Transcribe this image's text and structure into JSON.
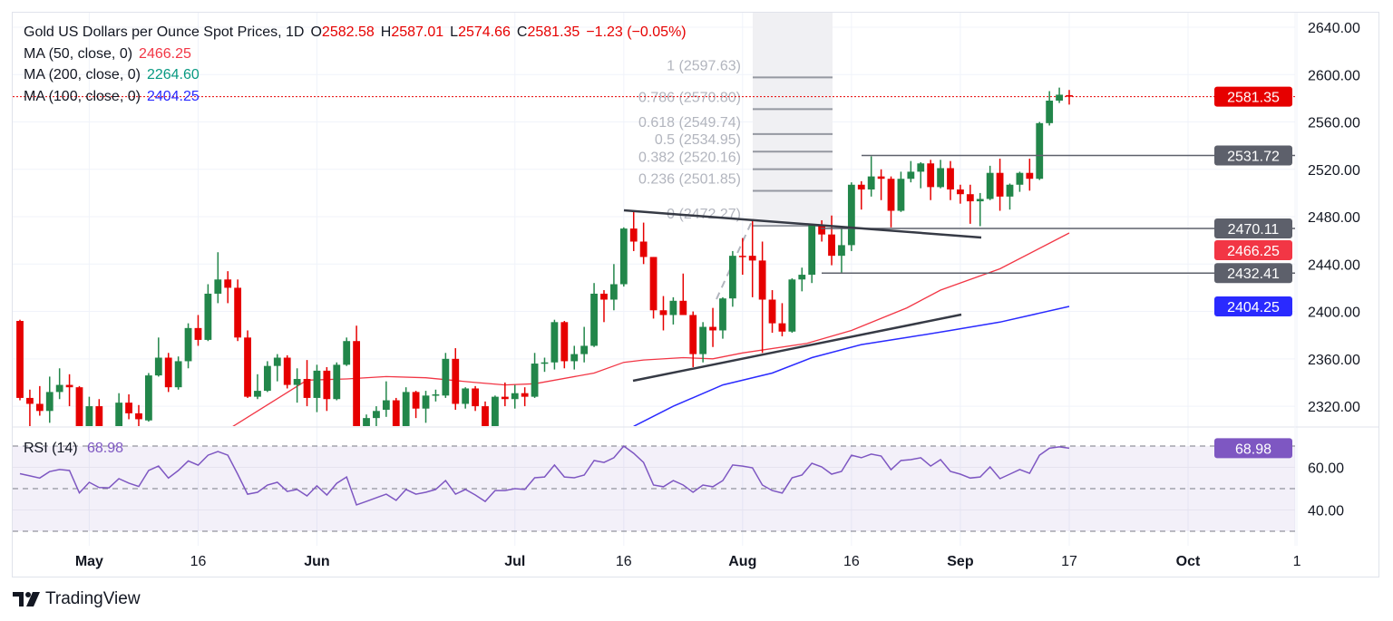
{
  "legend": {
    "title": "Gold US Dollars per Ounce Spot Prices, 1D",
    "o_label": "O",
    "o": "2582.58",
    "h_label": "H",
    "h": "2587.01",
    "l_label": "L",
    "l": "2574.66",
    "c_label": "C",
    "c": "2581.35",
    "change": "−1.23 (−0.05%)",
    "mas": [
      {
        "label": "MA (50, close, 0)",
        "value": "2466.25",
        "color": "#f23645"
      },
      {
        "label": "MA (200, close, 0)",
        "value": "2264.60",
        "color": "#089981"
      },
      {
        "label": "MA (100, close, 0)",
        "value": "2404.25",
        "color": "#2a2aff"
      }
    ]
  },
  "colors": {
    "up": "#22864a",
    "down": "#e60000",
    "ma50": "#f23645",
    "ma100": "#2a2aff",
    "rsi": "#7e57c2",
    "level": "#5d606b"
  },
  "chart_data": {
    "type": "candlestick",
    "title": "Gold US Dollars per Ounce Spot Prices, 1D",
    "ylim": [
      2303,
      2652
    ],
    "price_ticks": [
      {
        "value": 2640,
        "label": "2640.00"
      },
      {
        "value": 2600,
        "label": "2600.00"
      },
      {
        "value": 2560,
        "label": "2560.00"
      },
      {
        "value": 2520,
        "label": "2520.00"
      },
      {
        "value": 2480,
        "label": "2480.00"
      },
      {
        "value": 2440,
        "label": "2440.00"
      },
      {
        "value": 2400,
        "label": "2400.00"
      },
      {
        "value": 2360,
        "label": "2360.00"
      },
      {
        "value": 2320,
        "label": "2320.00"
      }
    ],
    "time_ticks": [
      {
        "bar": 7,
        "label": "May",
        "bold": true
      },
      {
        "bar": 18,
        "label": "16",
        "bold": false
      },
      {
        "bar": 30,
        "label": "Jun",
        "bold": true
      },
      {
        "bar": 50,
        "label": "Jul",
        "bold": true
      },
      {
        "bar": 61,
        "label": "16",
        "bold": false
      },
      {
        "bar": 73,
        "label": "Aug",
        "bold": true
      },
      {
        "bar": 84,
        "label": "16",
        "bold": false
      },
      {
        "bar": 95,
        "label": "Sep",
        "bold": true
      },
      {
        "bar": 106,
        "label": "17",
        "bold": false
      },
      {
        "bar": 118,
        "label": "Oct",
        "bold": true
      },
      {
        "bar": 129,
        "label": "1",
        "bold": false
      }
    ],
    "ohlc": [
      [
        2392,
        2393,
        2325,
        2327
      ],
      [
        2327,
        2334,
        2303,
        2322
      ],
      [
        2322,
        2337,
        2312,
        2316
      ],
      [
        2316,
        2345,
        2306,
        2332
      ],
      [
        2332,
        2352,
        2326,
        2338
      ],
      [
        2338,
        2347,
        2320,
        2336
      ],
      [
        2336,
        2337,
        2295,
        2300
      ],
      [
        2300,
        2328,
        2295,
        2320
      ],
      [
        2320,
        2326,
        2295,
        2300
      ],
      [
        2302,
        2303,
        2290,
        2300
      ],
      [
        2300,
        2331,
        2296,
        2323
      ],
      [
        2323,
        2330,
        2309,
        2314
      ],
      [
        2314,
        2321,
        2300,
        2309
      ],
      [
        2308,
        2348,
        2307,
        2346
      ],
      [
        2346,
        2378,
        2345,
        2361
      ],
      [
        2361,
        2365,
        2332,
        2336
      ],
      [
        2336,
        2362,
        2334,
        2358
      ],
      [
        2358,
        2390,
        2352,
        2386
      ],
      [
        2386,
        2397,
        2371,
        2376
      ],
      [
        2376,
        2423,
        2375,
        2415
      ],
      [
        2415,
        2450,
        2407,
        2427
      ],
      [
        2427,
        2434,
        2407,
        2420
      ],
      [
        2420,
        2427,
        2375,
        2378
      ],
      [
        2378,
        2384,
        2327,
        2328
      ],
      [
        2328,
        2347,
        2326,
        2333
      ],
      [
        2333,
        2358,
        2332,
        2354
      ],
      [
        2354,
        2364,
        2341,
        2361
      ],
      [
        2361,
        2363,
        2335,
        2338
      ],
      [
        2338,
        2352,
        2323,
        2343
      ],
      [
        2343,
        2359,
        2320,
        2327
      ],
      [
        2327,
        2355,
        2315,
        2350
      ],
      [
        2350,
        2353,
        2316,
        2326
      ],
      [
        2326,
        2357,
        2325,
        2355
      ],
      [
        2355,
        2378,
        2354,
        2375
      ],
      [
        2375,
        2388,
        2295,
        2302
      ],
      [
        2300,
        2313,
        2298,
        2310
      ],
      [
        2310,
        2320,
        2300,
        2316
      ],
      [
        2317,
        2341,
        2311,
        2325
      ],
      [
        2325,
        2327,
        2295,
        2302
      ],
      [
        2302,
        2336,
        2298,
        2332
      ],
      [
        2332,
        2333,
        2310,
        2318
      ],
      [
        2318,
        2333,
        2306,
        2329
      ],
      [
        2329,
        2334,
        2324,
        2330
      ],
      [
        2329,
        2365,
        2327,
        2360
      ],
      [
        2360,
        2369,
        2317,
        2322
      ],
      [
        2322,
        2336,
        2318,
        2335
      ],
      [
        2335,
        2337,
        2316,
        2320
      ],
      [
        2320,
        2324,
        2295,
        2302
      ],
      [
        2302,
        2329,
        2298,
        2328
      ],
      [
        2328,
        2340,
        2320,
        2326
      ],
      [
        2326,
        2338,
        2318,
        2331
      ],
      [
        2331,
        2336,
        2320,
        2328
      ],
      [
        2328,
        2365,
        2327,
        2356
      ],
      [
        2356,
        2361,
        2349,
        2357
      ],
      [
        2357,
        2393,
        2351,
        2391
      ],
      [
        2391,
        2392,
        2352,
        2358
      ],
      [
        2358,
        2371,
        2351,
        2364
      ],
      [
        2364,
        2387,
        2357,
        2371
      ],
      [
        2371,
        2424,
        2370,
        2415
      ],
      [
        2415,
        2418,
        2391,
        2410
      ],
      [
        2410,
        2440,
        2401,
        2423
      ],
      [
        2423,
        2471,
        2421,
        2470
      ],
      [
        2470,
        2484,
        2451,
        2459
      ],
      [
        2459,
        2475,
        2440,
        2446
      ],
      [
        2446,
        2446,
        2394,
        2401
      ],
      [
        2401,
        2413,
        2384,
        2397
      ],
      [
        2397,
        2412,
        2389,
        2409
      ],
      [
        2409,
        2432,
        2397,
        2397
      ],
      [
        2397,
        2400,
        2353,
        2364
      ],
      [
        2364,
        2391,
        2357,
        2387
      ],
      [
        2387,
        2403,
        2370,
        2384
      ],
      [
        2384,
        2412,
        2377,
        2411
      ],
      [
        2411,
        2451,
        2404,
        2447
      ],
      [
        2447,
        2462,
        2431,
        2446
      ],
      [
        2447,
        2478,
        2412,
        2443
      ],
      [
        2443,
        2459,
        2365,
        2410
      ],
      [
        2410,
        2418,
        2382,
        2390
      ],
      [
        2390,
        2407,
        2379,
        2383
      ],
      [
        2383,
        2428,
        2382,
        2427
      ],
      [
        2427,
        2437,
        2417,
        2431
      ],
      [
        2431,
        2473,
        2424,
        2473
      ],
      [
        2473,
        2477,
        2459,
        2465
      ],
      [
        2465,
        2481,
        2439,
        2447
      ],
      [
        2447,
        2470,
        2433,
        2456
      ],
      [
        2456,
        2509,
        2451,
        2507
      ],
      [
        2507,
        2510,
        2486,
        2503
      ],
      [
        2503,
        2531,
        2497,
        2514
      ],
      [
        2514,
        2520,
        2494,
        2512
      ],
      [
        2512,
        2514,
        2471,
        2485
      ],
      [
        2485,
        2518,
        2484,
        2512
      ],
      [
        2512,
        2527,
        2509,
        2518
      ],
      [
        2518,
        2526,
        2504,
        2525
      ],
      [
        2525,
        2528,
        2494,
        2505
      ],
      [
        2505,
        2528,
        2504,
        2521
      ],
      [
        2521,
        2527,
        2494,
        2503
      ],
      [
        2503,
        2507,
        2491,
        2499
      ],
      [
        2499,
        2507,
        2474,
        2493
      ],
      [
        2493,
        2500,
        2472,
        2495
      ],
      [
        2495,
        2523,
        2494,
        2517
      ],
      [
        2517,
        2529,
        2485,
        2497
      ],
      [
        2497,
        2508,
        2486,
        2507
      ],
      [
        2507,
        2518,
        2501,
        2517
      ],
      [
        2517,
        2529,
        2502,
        2512
      ],
      [
        2512,
        2560,
        2511,
        2559
      ],
      [
        2559,
        2586,
        2557,
        2578
      ],
      [
        2578,
        2589,
        2576,
        2583
      ],
      [
        2582.58,
        2587.01,
        2574.66,
        2581.35
      ]
    ],
    "ma50": [
      [
        20,
        2295
      ],
      [
        29,
        2342
      ],
      [
        33,
        2343
      ],
      [
        37,
        2345
      ],
      [
        41,
        2344
      ],
      [
        46,
        2340
      ],
      [
        49,
        2338
      ],
      [
        52,
        2339
      ],
      [
        58,
        2348
      ],
      [
        61,
        2357
      ],
      [
        63,
        2359
      ],
      [
        67,
        2361
      ],
      [
        70,
        2360
      ],
      [
        73,
        2365
      ],
      [
        79.5,
        2373
      ],
      [
        84,
        2384
      ],
      [
        89.6,
        2403
      ],
      [
        93,
        2418
      ],
      [
        99,
        2436
      ],
      [
        106,
        2466.25
      ]
    ],
    "ma100": [
      [
        62,
        2303
      ],
      [
        66,
        2320
      ],
      [
        71,
        2338
      ],
      [
        76,
        2348
      ],
      [
        80,
        2361
      ],
      [
        85,
        2372
      ],
      [
        89.6,
        2378
      ],
      [
        94,
        2384
      ],
      [
        99,
        2391
      ],
      [
        106,
        2404.25
      ]
    ],
    "fib_levels": [
      {
        "value": 2597.63,
        "label": "1 (2597.63)"
      },
      {
        "value": 2570.8,
        "label": "0.786 (2570.80)"
      },
      {
        "value": 2549.74,
        "label": "0.618 (2549.74)"
      },
      {
        "value": 2534.95,
        "label": "0.5 (2534.95)"
      },
      {
        "value": 2520.16,
        "label": "0.382 (2520.16)"
      },
      {
        "value": 2501.85,
        "label": "0.236 (2501.85)"
      },
      {
        "value": 2472.27,
        "label": "0 (2472.27)"
      }
    ],
    "levels": [
      2531.72,
      2470.11,
      2432.41
    ],
    "price_labels": [
      {
        "value": 2581.35,
        "label": "2581.35",
        "color": "#e60000"
      },
      {
        "value": 2531.72,
        "label": "2531.72",
        "color": "#5d606b"
      },
      {
        "value": 2470.11,
        "label": "2470.11",
        "color": "#5d606b"
      },
      {
        "value": 2466.25,
        "label": "2466.25",
        "color": "#f23645"
      },
      {
        "value": 2432.41,
        "label": "2432.41",
        "color": "#5d606b"
      },
      {
        "value": 2404.25,
        "label": "2404.25",
        "color": "#2a2aff"
      }
    ],
    "rsi": {
      "label": "RSI (14)",
      "value": "68.98",
      "ticks": [
        {
          "value": 60,
          "label": "60.00"
        },
        {
          "value": 40,
          "label": "40.00"
        }
      ],
      "bands": [
        70,
        50,
        30
      ],
      "values": [
        57,
        56,
        55,
        58,
        59,
        58.5,
        48,
        53,
        50.5,
        50.4,
        54.7,
        52.6,
        51,
        58.5,
        60.6,
        55,
        58.5,
        63,
        61,
        65.7,
        67.4,
        65.7,
        56.8,
        47.4,
        48.3,
        51.7,
        53,
        48.7,
        49.6,
        46.6,
        51.3,
        47,
        52.5,
        55.5,
        42.4,
        44,
        45.7,
        47.4,
        44.5,
        49.6,
        47.4,
        48.3,
        49.6,
        53.8,
        47.4,
        49.6,
        47,
        44,
        49.1,
        49.1,
        50,
        49.6,
        55.1,
        55.5,
        61.1,
        55.5,
        55.1,
        56.4,
        63.2,
        62.3,
        64.5,
        70,
        66.6,
        62.3,
        51.7,
        50.9,
        53.8,
        51.7,
        48.3,
        51.7,
        50.9,
        53.8,
        61.1,
        60.6,
        59.8,
        51.7,
        49.1,
        47.9,
        55.1,
        56.4,
        61.9,
        60.2,
        56.8,
        58.1,
        65.7,
        64.5,
        66.2,
        65.3,
        58.9,
        63.2,
        63.6,
        64.5,
        60.6,
        63.6,
        58.1,
        56.8,
        55,
        55.5,
        60.2,
        54.7,
        56.8,
        59,
        57.2,
        65.7,
        69,
        69.6,
        68.98
      ]
    }
  },
  "brand": {
    "name": "TradingView"
  }
}
